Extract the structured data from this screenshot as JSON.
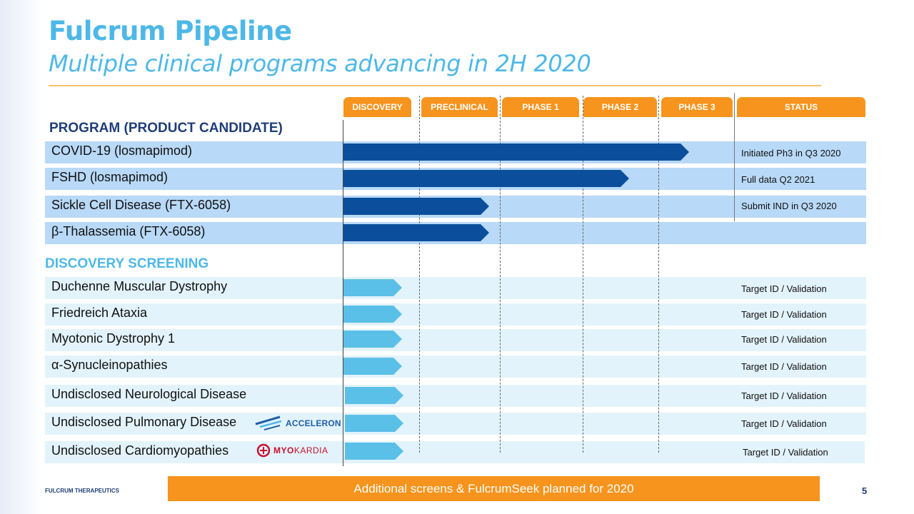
{
  "title": "Fulcrum Pipeline",
  "subtitle": "Multiple clinical programs advancing in 2H 2020",
  "columns": {
    "discovery": "DISCOVERY",
    "preclinical": "PRECLINICAL",
    "phase1": "PHASE 1",
    "phase2": "PHASE 2",
    "phase3": "PHASE 3",
    "status": "STATUS"
  },
  "sections": {
    "program": "PROGRAM (PRODUCT CANDIDATE)",
    "discovery": "DISCOVERY SCREENING"
  },
  "programs": [
    {
      "name": "COVID-19 (losmapimod)",
      "status": "Initiated Ph3 in Q3 2020"
    },
    {
      "name": "FSHD (losmapimod)",
      "status": "Full data Q2 2021"
    },
    {
      "name": "Sickle Cell Disease (FTX-6058)",
      "status": "Submit IND in Q3 2020"
    },
    {
      "name": "β-Thalassemia (FTX-6058)",
      "status": ""
    }
  ],
  "screens": [
    {
      "name": "Duchenne Muscular Dystrophy",
      "status": "Target ID / Validation"
    },
    {
      "name": "Friedreich Ataxia",
      "status": "Target ID / Validation"
    },
    {
      "name": "Myotonic Dystrophy 1",
      "status": "Target ID / Validation"
    },
    {
      "name": "α-Synucleinopathies",
      "status": "Target ID / Validation"
    },
    {
      "name": "Undisclosed Neurological Disease",
      "status": "Target ID / Validation"
    },
    {
      "name": "Undisclosed Pulmonary Disease",
      "status": "Target ID / Validation"
    },
    {
      "name": "Undisclosed Cardiomyopathies",
      "status": "Target ID / Validation"
    }
  ],
  "partners": {
    "acceleron": "ACCELERON",
    "myokardia_a": "MYO",
    "myokardia_b": "KARDIA"
  },
  "footer": {
    "banner": "Additional screens & FulcrumSeek planned for 2020",
    "company": "FULCRUM THERAPEUTICS",
    "page": "5"
  },
  "colors": {
    "title": "#4db8e8",
    "program_bar": "#0b4f9c",
    "screen_bar": "#5bc0e8",
    "tab": "#f7941d",
    "section_program": "#1f3e78",
    "section_discovery": "#4db8e8"
  }
}
